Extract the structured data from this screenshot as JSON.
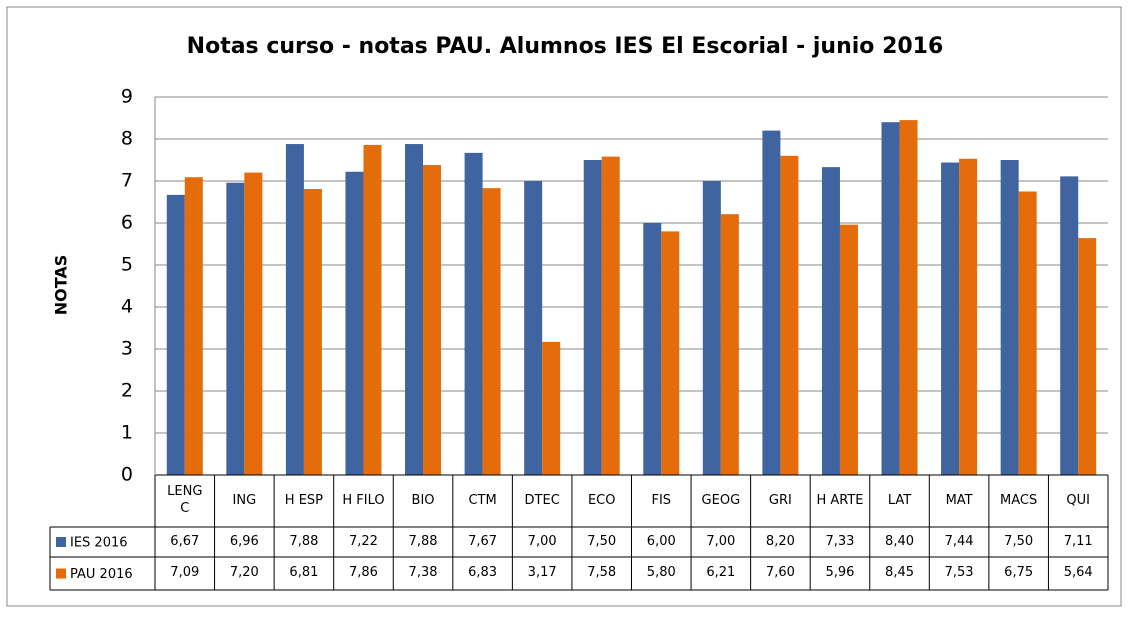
{
  "chart_data": {
    "type": "bar",
    "title": "Notas  curso - notas PAU. Alumnos IES El Escorial - junio 2016",
    "y_label": "NOTAS",
    "categories": [
      "LENG C",
      "ING",
      "H ESP",
      "H FILO",
      "BIO",
      "CTM",
      "DTEC",
      "ECO",
      "FIS",
      "GEOG",
      "GRI",
      "H ARTE",
      "LAT",
      "MAT",
      "MACS",
      "QUI"
    ],
    "series": [
      {
        "name": "IES 2016",
        "color": "#3f64a0",
        "values": [
          6.67,
          6.96,
          7.88,
          7.22,
          7.88,
          7.67,
          7.0,
          7.5,
          6.0,
          7.0,
          8.2,
          7.33,
          8.4,
          7.44,
          7.5,
          7.11
        ],
        "value_labels": [
          "6,67",
          "6,96",
          "7,88",
          "7,22",
          "7,88",
          "7,67",
          "7,00",
          "7,50",
          "6,00",
          "7,00",
          "8,20",
          "7,33",
          "8,40",
          "7,44",
          "7,50",
          "7,11"
        ]
      },
      {
        "name": "PAU 2016",
        "color": "#e46c0a",
        "values": [
          7.09,
          7.2,
          6.81,
          7.86,
          7.38,
          6.83,
          3.17,
          7.58,
          5.8,
          6.21,
          7.6,
          5.96,
          8.45,
          7.53,
          6.75,
          5.64
        ],
        "value_labels": [
          "7,09",
          "7,20",
          "6,81",
          "7,86",
          "7,38",
          "6,83",
          "3,17",
          "7,58",
          "5,80",
          "6,21",
          "7,60",
          "5,96",
          "8,45",
          "7,53",
          "6,75",
          "5,64"
        ]
      }
    ],
    "ylim": [
      0,
      9
    ],
    "yticks": [
      0,
      1,
      2,
      3,
      4,
      5,
      6,
      7,
      8,
      9
    ],
    "grid": true
  }
}
